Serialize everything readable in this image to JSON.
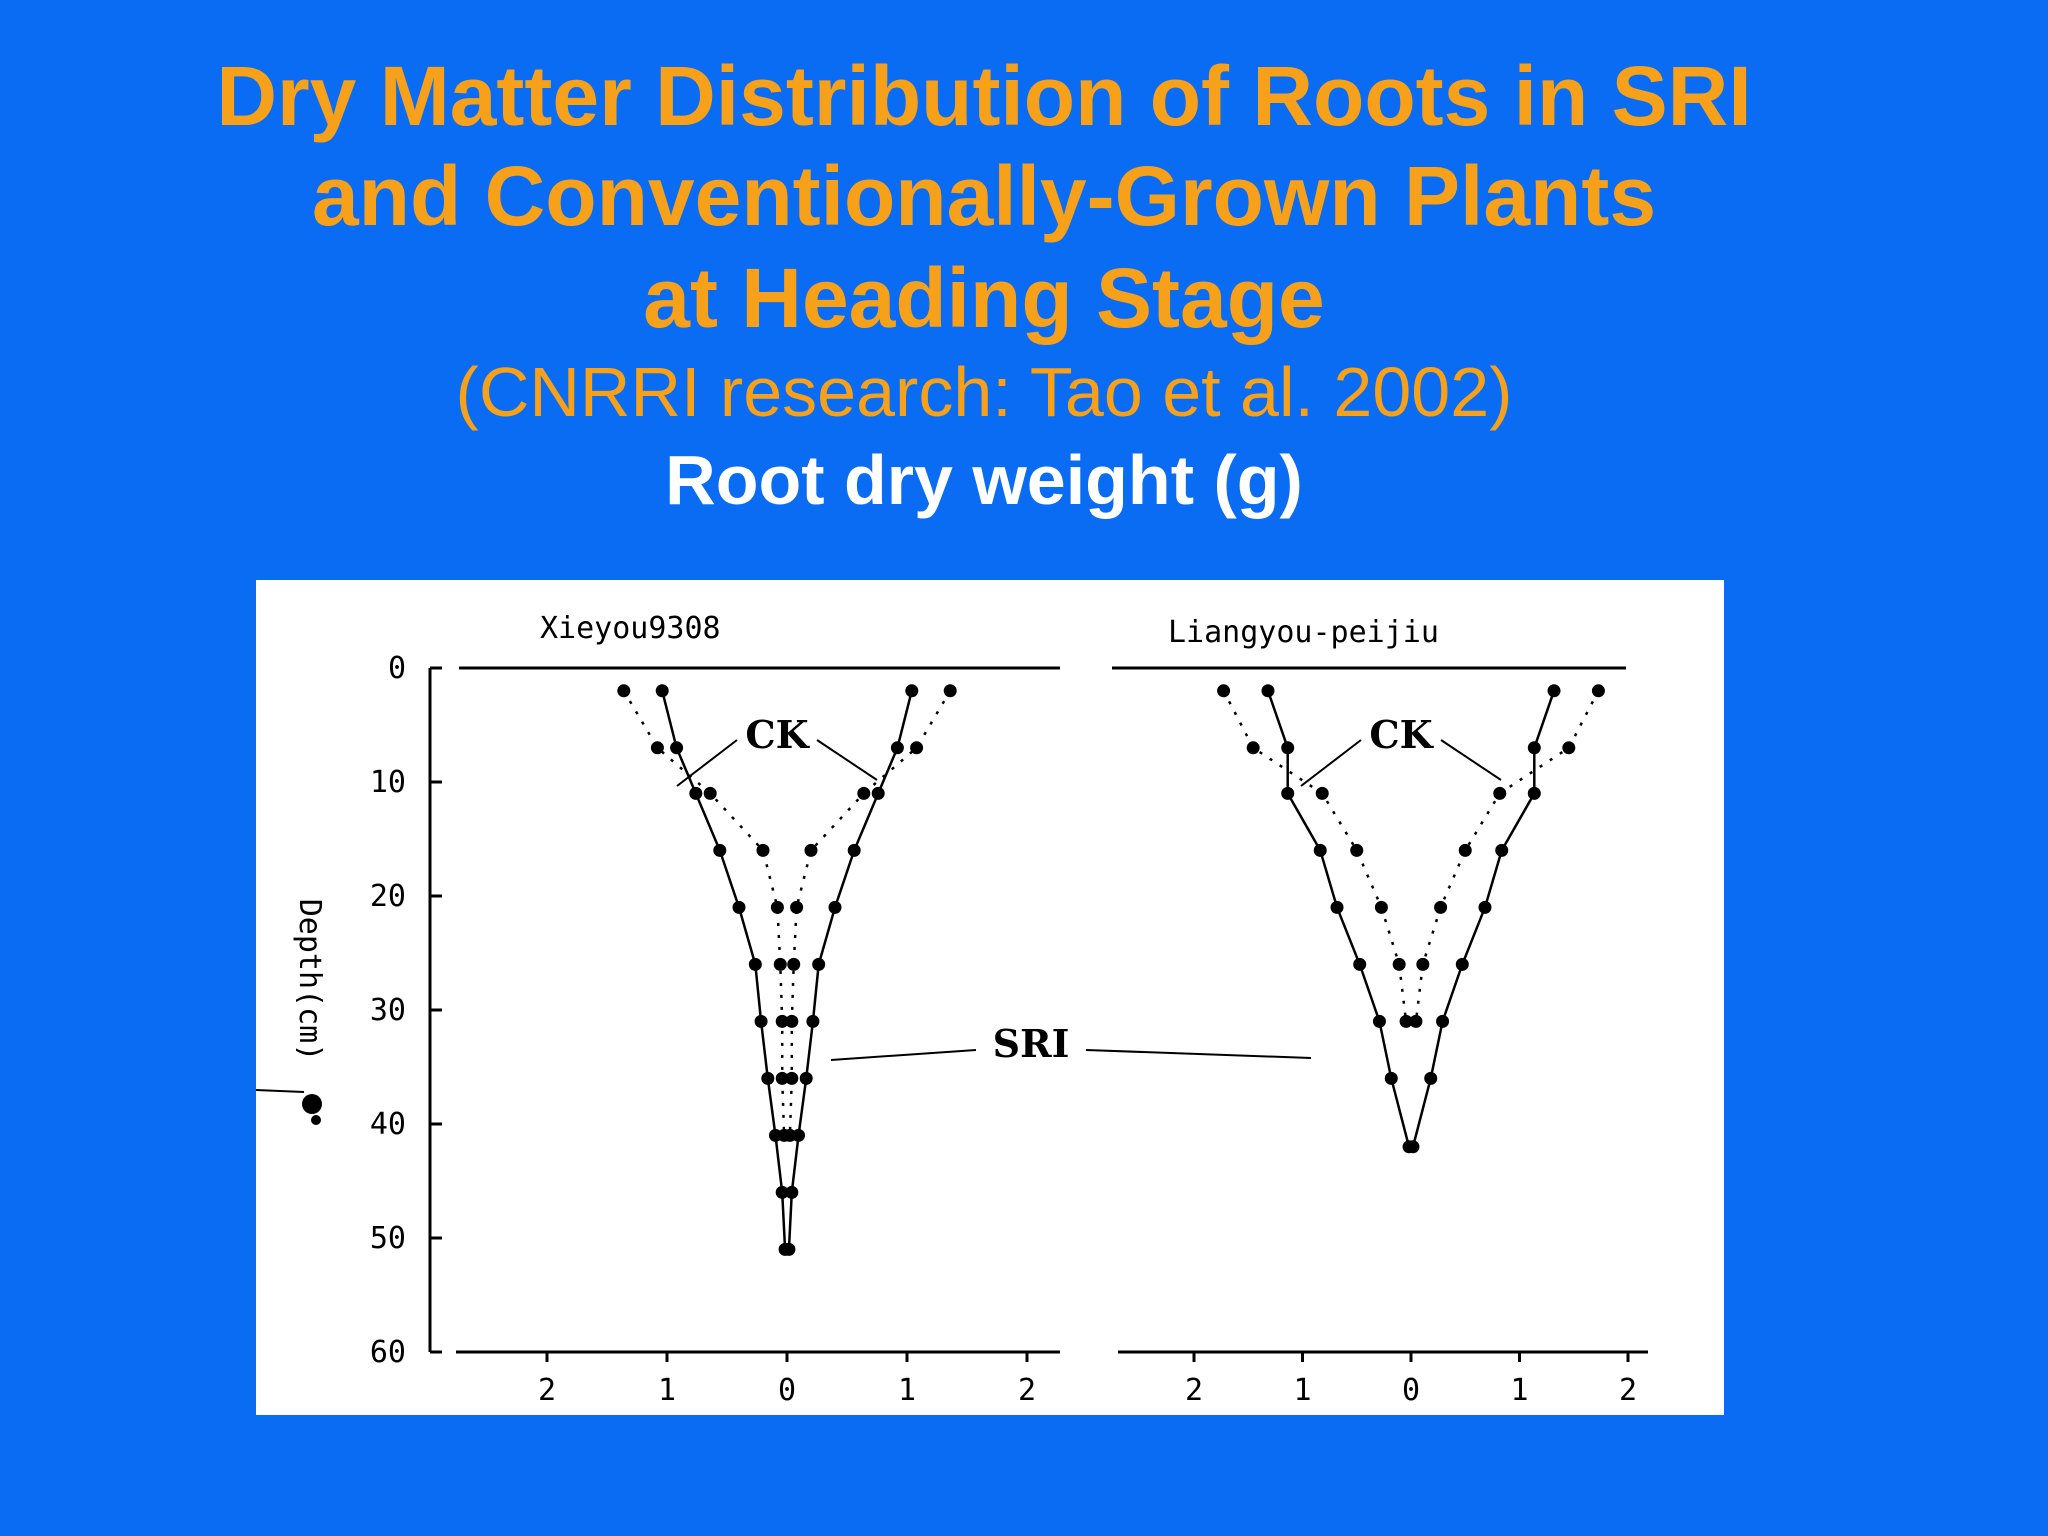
{
  "slide": {
    "title_lines": [
      "Dry Matter Distribution of Roots in SRI",
      "and Conventionally-Grown Plants",
      "at Heading Stage"
    ],
    "subtitle": "(CNRRI research: Tao et al. 2002)",
    "xlabel": "Root dry weight (g)"
  },
  "colors": {
    "background": "#0a6cf2",
    "title": "#f7a11a",
    "xlabel": "#ffffff",
    "plot_bg": "#ffffff"
  },
  "chart_data": [
    {
      "type": "line",
      "title": "Xieyou9308",
      "xlabel": "Root dry weight (g)",
      "ylabel": "Depth(cm)",
      "y_ticks": [
        "0",
        "10",
        "20",
        "30",
        "40",
        "50",
        "60"
      ],
      "x_ticks": [
        "2",
        "1",
        "0",
        "1",
        "2"
      ],
      "xlim": [
        -2.5,
        2.5
      ],
      "ylim": [
        0,
        60
      ],
      "y_inverted": true,
      "annotations": [
        "CK",
        "SRI"
      ],
      "series": [
        {
          "name": "CK",
          "style": "solid",
          "depth": [
            2,
            7,
            11,
            16,
            21,
            26,
            31,
            36,
            41,
            46,
            51
          ],
          "weight": [
            1.3,
            1.15,
            0.95,
            0.7,
            0.5,
            0.33,
            0.27,
            0.2,
            0.12,
            0.05,
            0.02
          ]
        },
        {
          "name": "SRI",
          "style": "dotted",
          "depth": [
            2,
            7,
            11,
            16,
            21,
            26,
            31,
            36,
            41
          ],
          "weight": [
            1.7,
            1.35,
            0.8,
            0.25,
            0.1,
            0.07,
            0.05,
            0.05,
            0.03
          ]
        }
      ]
    },
    {
      "type": "line",
      "title": "Liangyou-peijiu",
      "xlabel": "Root dry weight (g)",
      "ylabel": "Depth(cm)",
      "y_ticks": [
        "0",
        "10",
        "20",
        "30",
        "40",
        "50",
        "60"
      ],
      "x_ticks": [
        "2",
        "1",
        "0",
        "1",
        "2"
      ],
      "xlim": [
        -2.2,
        2.2
      ],
      "ylim": [
        0,
        60
      ],
      "y_inverted": true,
      "annotations": [
        "CK"
      ],
      "series": [
        {
          "name": "CK",
          "style": "solid",
          "depth": [
            2,
            7,
            11,
            16,
            21,
            26,
            31,
            36,
            42
          ],
          "weight": [
            1.45,
            1.25,
            1.25,
            0.92,
            0.75,
            0.52,
            0.32,
            0.2,
            0.02
          ]
        },
        {
          "name": "SRI",
          "style": "dotted",
          "depth": [
            2,
            7,
            11,
            16,
            21,
            26,
            31
          ],
          "weight": [
            1.9,
            1.6,
            0.9,
            0.55,
            0.3,
            0.12,
            0.05
          ]
        }
      ]
    }
  ]
}
